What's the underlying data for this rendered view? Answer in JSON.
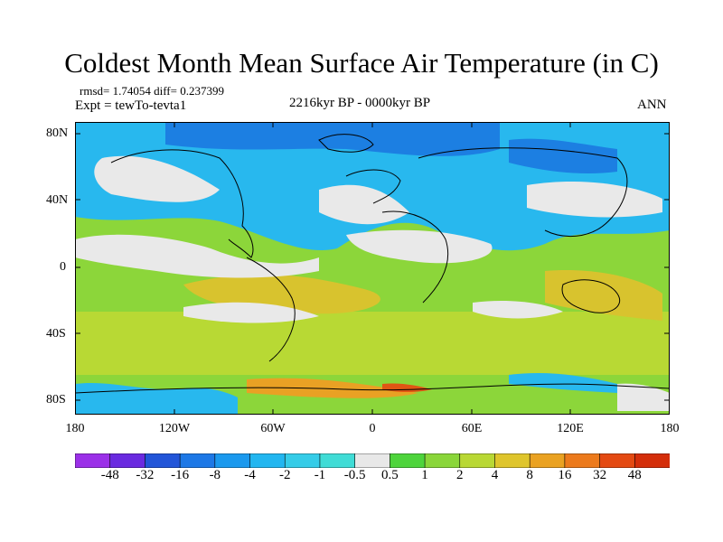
{
  "header": {
    "title": "Coldest Month Mean Surface Air Temperature (in C)",
    "stats": "rmsd= 1.74054 diff= 0.237399",
    "experiment": "Expt = tewTo-tevta1",
    "period": "2216kyr BP - 0000kyr BP",
    "season": "ANN"
  },
  "axes": {
    "lat_labels": [
      "80N",
      "40N",
      "0",
      "40S",
      "80S"
    ],
    "lon_labels": [
      "180",
      "120W",
      "60W",
      "0",
      "60E",
      "120E",
      "180"
    ]
  },
  "colorbar": {
    "labels": [
      "-48",
      "-32",
      "-16",
      "-8",
      "-4",
      "-2",
      "-1",
      "-0.5",
      "0.5",
      "1",
      "2",
      "4",
      "8",
      "16",
      "32",
      "48"
    ],
    "colors": [
      "#9b30e8",
      "#6a2ae0",
      "#2255d8",
      "#1d78e6",
      "#1b99ee",
      "#22b6f0",
      "#35cce8",
      "#40dcd6",
      "#e8e8e8",
      "#4ed43c",
      "#8ad63a",
      "#b9d834",
      "#dfc52c",
      "#eaa222",
      "#ec7a1c",
      "#e44a12",
      "#d42e0a"
    ]
  },
  "map_colors": {
    "white": "#e9e9e9",
    "cyan": "#28b8ee",
    "blue": "#1c7fe2",
    "green": "#8cd63a",
    "lime": "#b8d934",
    "yellow": "#d8c32e",
    "orange": "#e9a124",
    "red": "#e05614"
  }
}
